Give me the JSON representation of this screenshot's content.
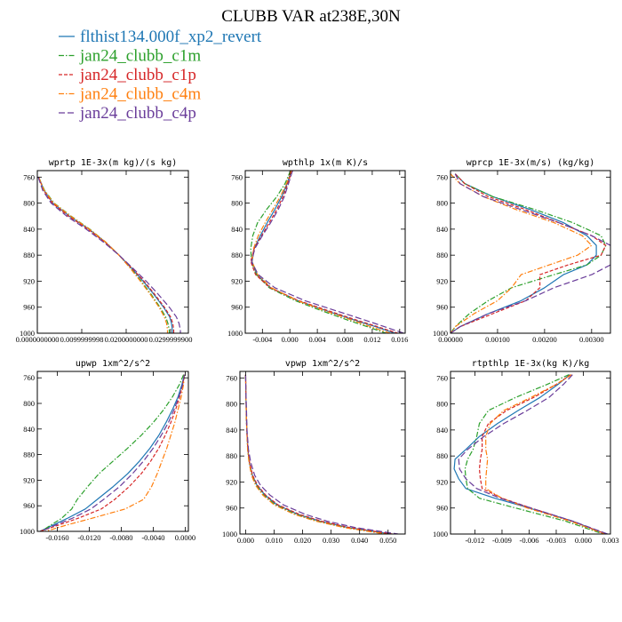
{
  "figure": {
    "title": "CLUBB VAR at238E,30N",
    "legend": [
      {
        "name": "flthist134.000f_xp2_revert",
        "color": "#1f77b4",
        "dash": "solid"
      },
      {
        "name": "jan24_clubb_c1m",
        "color": "#2ca02c",
        "dash": "dashdot"
      },
      {
        "name": "jan24_clubb_c1p",
        "color": "#d62728",
        "dash": "dash"
      },
      {
        "name": "jan24_clubb_c4m",
        "color": "#ff7f0e",
        "dash": "dashdot"
      },
      {
        "name": "jan24_clubb_c4p",
        "color": "#6a3d9a",
        "dash": "longdash"
      }
    ]
  },
  "chart_data": [
    {
      "type": "line",
      "title": "wprtp  1E-3x(m kg)/(s kg)",
      "xlim": [
        0,
        0.034
      ],
      "ylim": [
        1000,
        750
      ],
      "y_reversed": true,
      "xticks": [
        0,
        0.01,
        0.02,
        0.03
      ],
      "xtick_labels": [
        "0.0000000000",
        "0.0099999998",
        "0.0200000000",
        "0.0299999900"
      ],
      "yticks": [
        760,
        800,
        840,
        880,
        920,
        960,
        1000
      ],
      "ytick_labels": [
        "760",
        "800",
        "840",
        "880",
        "920",
        "960",
        "1000"
      ],
      "y": [
        760,
        780,
        800,
        820,
        840,
        860,
        880,
        900,
        920,
        940,
        960,
        975,
        985,
        995,
        1000
      ],
      "series": [
        {
          "name": "flthist134.000f_xp2_revert",
          "values": [
            0.0003,
            0.0015,
            0.0035,
            0.0072,
            0.0116,
            0.0153,
            0.0184,
            0.0212,
            0.0238,
            0.0262,
            0.0284,
            0.0298,
            0.0302,
            0.0304,
            0.0304
          ]
        },
        {
          "name": "jan24_clubb_c1m",
          "values": [
            0.0003,
            0.0016,
            0.0038,
            0.0076,
            0.0118,
            0.0154,
            0.0184,
            0.021,
            0.0234,
            0.0256,
            0.0276,
            0.0289,
            0.0294,
            0.0297,
            0.0297
          ]
        },
        {
          "name": "jan24_clubb_c1p",
          "values": [
            0.0003,
            0.0014,
            0.0034,
            0.007,
            0.0114,
            0.0152,
            0.0184,
            0.0213,
            0.024,
            0.0264,
            0.0286,
            0.03,
            0.0305,
            0.0307,
            0.0307
          ]
        },
        {
          "name": "jan24_clubb_c4m",
          "values": [
            0.0003,
            0.0015,
            0.0037,
            0.0075,
            0.0117,
            0.0154,
            0.0184,
            0.0209,
            0.0232,
            0.0254,
            0.0274,
            0.0286,
            0.0291,
            0.0293,
            0.0293
          ]
        },
        {
          "name": "jan24_clubb_c4p",
          "values": [
            0.0002,
            0.0012,
            0.0031,
            0.0066,
            0.011,
            0.0149,
            0.0184,
            0.0215,
            0.0245,
            0.0272,
            0.0297,
            0.0313,
            0.0319,
            0.0322,
            0.0322
          ]
        }
      ]
    },
    {
      "type": "line",
      "title": "wpthlp  1x(m K)/s",
      "xlim": [
        -0.0065,
        0.0168
      ],
      "ylim": [
        1000,
        750
      ],
      "y_reversed": true,
      "xticks": [
        -0.004,
        0.0,
        0.004,
        0.008,
        0.012,
        0.016
      ],
      "xtick_labels": [
        "-0.004",
        "0.000",
        "0.004",
        "0.008",
        "0.012",
        "0.016"
      ],
      "yticks": [
        760,
        800,
        840,
        880,
        920,
        960,
        1000
      ],
      "ytick_labels": [
        "760",
        "800",
        "840",
        "880",
        "920",
        "960",
        "1000"
      ],
      "y": [
        750,
        770,
        790,
        810,
        830,
        850,
        870,
        890,
        910,
        930,
        950,
        965,
        980,
        990,
        1000
      ],
      "series": [
        {
          "name": "flthist134.000f_xp2_revert",
          "values": [
            0.0002,
            -0.0004,
            -0.0012,
            -0.0022,
            -0.0033,
            -0.0043,
            -0.0052,
            -0.0055,
            -0.0048,
            -0.0028,
            0.0012,
            0.0052,
            0.0095,
            0.0125,
            0.0153
          ]
        },
        {
          "name": "jan24_clubb_c1m",
          "values": [
            0.0001,
            -0.0007,
            -0.0019,
            -0.0034,
            -0.0047,
            -0.0054,
            -0.0057,
            -0.0056,
            -0.0049,
            -0.003,
            0.0008,
            0.0045,
            0.0085,
            0.0113,
            0.014
          ]
        },
        {
          "name": "jan24_clubb_c1p",
          "values": [
            0.0003,
            -0.0003,
            -0.001,
            -0.0019,
            -0.003,
            -0.0041,
            -0.0052,
            -0.0057,
            -0.005,
            -0.0029,
            0.0013,
            0.0055,
            0.0098,
            0.0128,
            0.0157
          ]
        },
        {
          "name": "jan24_clubb_c4m",
          "values": [
            0.0002,
            -0.0005,
            -0.0014,
            -0.0025,
            -0.0036,
            -0.0046,
            -0.0053,
            -0.0055,
            -0.0047,
            -0.0027,
            0.0011,
            0.005,
            0.0091,
            0.0118,
            0.0146
          ]
        },
        {
          "name": "jan24_clubb_c4p",
          "values": [
            0.0004,
            -0.0002,
            -0.0008,
            -0.0017,
            -0.0028,
            -0.004,
            -0.0051,
            -0.0056,
            -0.0046,
            -0.0022,
            0.0022,
            0.0066,
            0.011,
            0.0138,
            0.0166
          ]
        }
      ]
    },
    {
      "type": "line",
      "title": "wprcp  1E-3x(m/s) (kg/kg)",
      "xlim": [
        0,
        0.0034
      ],
      "ylim": [
        1000,
        750
      ],
      "y_reversed": true,
      "xticks": [
        0,
        0.001,
        0.002,
        0.003
      ],
      "xtick_labels": [
        "0.00000",
        "0.00100",
        "0.00200",
        "0.00300"
      ],
      "yticks": [
        760,
        800,
        840,
        880,
        920,
        960,
        1000
      ],
      "ytick_labels": [
        "760",
        "800",
        "840",
        "880",
        "920",
        "960",
        "1000"
      ],
      "y": [
        755,
        770,
        790,
        810,
        830,
        850,
        865,
        880,
        895,
        910,
        930,
        950,
        970,
        990,
        1000
      ],
      "series": [
        {
          "name": "flthist134.000f_xp2_revert",
          "values": [
            0.0001,
            0.0003,
            0.0009,
            0.0017,
            0.0024,
            0.0029,
            0.0031,
            0.0031,
            0.0029,
            0.0024,
            0.002,
            0.0015,
            0.0008,
            0.0002,
            0.0
          ]
        },
        {
          "name": "jan24_clubb_c1m",
          "values": [
            0.0001,
            0.0003,
            0.0009,
            0.0018,
            0.0026,
            0.0032,
            0.0033,
            0.0032,
            0.0029,
            0.0022,
            0.0013,
            0.0008,
            0.0004,
            0.0001,
            0.0
          ]
        },
        {
          "name": "jan24_clubb_c1p",
          "values": [
            0.0001,
            0.0003,
            0.0008,
            0.0016,
            0.0023,
            0.003,
            0.0033,
            0.0032,
            0.0025,
            0.0019,
            0.0019,
            0.0016,
            0.0009,
            0.0002,
            0.0
          ]
        },
        {
          "name": "jan24_clubb_c4m",
          "values": [
            0.0,
            0.0002,
            0.0007,
            0.0014,
            0.0022,
            0.0028,
            0.003,
            0.0027,
            0.0021,
            0.0015,
            0.0013,
            0.001,
            0.0005,
            0.0001,
            0.0
          ]
        },
        {
          "name": "jan24_clubb_c4p",
          "values": [
            0.0001,
            0.0002,
            0.0007,
            0.0015,
            0.0023,
            0.003,
            0.0034,
            0.0035,
            0.0034,
            0.003,
            0.0022,
            0.0016,
            0.0008,
            0.0002,
            0.0
          ]
        }
      ]
    },
    {
      "type": "line",
      "title": "upwp  1xm^2/s^2",
      "xlim": [
        -0.0185,
        0.0004
      ],
      "ylim": [
        1000,
        750
      ],
      "y_reversed": true,
      "xticks": [
        -0.016,
        -0.012,
        -0.008,
        -0.004,
        0.0
      ],
      "xtick_labels": [
        "-0.0160",
        "-0.0120",
        "-0.0080",
        "-0.0040",
        "0.0000"
      ],
      "yticks": [
        760,
        800,
        840,
        880,
        920,
        960,
        1000
      ],
      "ytick_labels": [
        "760",
        "800",
        "840",
        "880",
        "920",
        "960",
        "1000"
      ],
      "y": [
        755,
        770,
        790,
        810,
        830,
        850,
        870,
        890,
        910,
        930,
        950,
        965,
        980,
        990,
        1000
      ],
      "series": [
        {
          "name": "flthist134.000f_xp2_revert",
          "values": [
            -0.0001,
            -0.0004,
            -0.0009,
            -0.0016,
            -0.0024,
            -0.0033,
            -0.0044,
            -0.0057,
            -0.0072,
            -0.009,
            -0.011,
            -0.0125,
            -0.0148,
            -0.0165,
            -0.0182
          ]
        },
        {
          "name": "jan24_clubb_c1m",
          "values": [
            -0.0002,
            -0.0007,
            -0.0016,
            -0.0027,
            -0.004,
            -0.0055,
            -0.0072,
            -0.009,
            -0.0108,
            -0.0122,
            -0.0135,
            -0.0142,
            -0.0155,
            -0.0168,
            -0.018
          ]
        },
        {
          "name": "jan24_clubb_c1p",
          "values": [
            -0.0001,
            -0.0003,
            -0.0007,
            -0.0012,
            -0.0018,
            -0.0025,
            -0.0033,
            -0.0043,
            -0.0055,
            -0.007,
            -0.0088,
            -0.0105,
            -0.0135,
            -0.0158,
            -0.0182
          ]
        },
        {
          "name": "jan24_clubb_c4m",
          "values": [
            -0.0001,
            -0.0002,
            -0.0005,
            -0.0009,
            -0.0013,
            -0.0018,
            -0.0023,
            -0.0029,
            -0.0035,
            -0.0042,
            -0.0052,
            -0.0075,
            -0.0118,
            -0.0148,
            -0.0175
          ]
        },
        {
          "name": "jan24_clubb_c4p",
          "values": [
            -0.0001,
            -0.0003,
            -0.0008,
            -0.0014,
            -0.0021,
            -0.003,
            -0.004,
            -0.0052,
            -0.0066,
            -0.0082,
            -0.0102,
            -0.0118,
            -0.0142,
            -0.0162,
            -0.018
          ]
        }
      ]
    },
    {
      "type": "line",
      "title": "vpwp  1xm^2/s^2",
      "xlim": [
        -0.002,
        0.056
      ],
      "ylim": [
        1000,
        750
      ],
      "y_reversed": true,
      "xticks": [
        0.0,
        0.01,
        0.02,
        0.03,
        0.04,
        0.05
      ],
      "xtick_labels": [
        "0.000",
        "0.010",
        "0.020",
        "0.030",
        "0.040",
        "0.050"
      ],
      "yticks": [
        760,
        800,
        840,
        880,
        920,
        960,
        1000
      ],
      "ytick_labels": [
        "760",
        "800",
        "840",
        "880",
        "920",
        "960",
        "1000"
      ],
      "y": [
        755,
        780,
        810,
        840,
        870,
        890,
        910,
        925,
        940,
        955,
        970,
        980,
        990,
        1000
      ],
      "series": [
        {
          "name": "flthist134.000f_xp2_revert",
          "values": [
            0.0,
            0.0001,
            0.0002,
            0.0004,
            0.0008,
            0.0013,
            0.0024,
            0.004,
            0.0068,
            0.011,
            0.0185,
            0.026,
            0.036,
            0.051
          ]
        },
        {
          "name": "jan24_clubb_c1m",
          "values": [
            0.0,
            0.0001,
            0.0002,
            0.0004,
            0.0007,
            0.0012,
            0.0022,
            0.0037,
            0.0063,
            0.0104,
            0.0178,
            0.025,
            0.035,
            0.05
          ]
        },
        {
          "name": "jan24_clubb_c1p",
          "values": [
            0.0,
            0.0001,
            0.0002,
            0.0004,
            0.0008,
            0.0014,
            0.0025,
            0.0042,
            0.007,
            0.0113,
            0.019,
            0.0265,
            0.0365,
            0.0515
          ]
        },
        {
          "name": "jan24_clubb_c4m",
          "values": [
            0.0,
            0.0001,
            0.0002,
            0.0004,
            0.0007,
            0.0012,
            0.0021,
            0.0035,
            0.006,
            0.01,
            0.0172,
            0.0245,
            0.0345,
            0.049
          ]
        },
        {
          "name": "jan24_clubb_c4p",
          "values": [
            0.0,
            0.0001,
            0.0003,
            0.0005,
            0.001,
            0.0018,
            0.0032,
            0.0052,
            0.0085,
            0.0132,
            0.021,
            0.0285,
            0.0385,
            0.0535
          ]
        }
      ]
    },
    {
      "type": "line",
      "title": "rtpthlp  1E-3x(kg K)/kg",
      "xlim": [
        -0.0147,
        0.003
      ],
      "ylim": [
        1000,
        750
      ],
      "y_reversed": true,
      "xticks": [
        -0.012,
        -0.009,
        -0.006,
        -0.003,
        0.0,
        0.003
      ],
      "xtick_labels": [
        "-0.012",
        "-0.009",
        "-0.006",
        "-0.003",
        "0.000",
        "0.003"
      ],
      "yticks": [
        760,
        800,
        840,
        880,
        920,
        960,
        1000
      ],
      "ytick_labels": [
        "760",
        "800",
        "840",
        "880",
        "920",
        "960",
        "1000"
      ],
      "y": [
        755,
        770,
        790,
        810,
        830,
        850,
        870,
        885,
        900,
        915,
        930,
        945,
        960,
        980,
        1000
      ],
      "series": [
        {
          "name": "flthist134.000f_xp2_revert",
          "values": [
            -0.0015,
            -0.0028,
            -0.0048,
            -0.0072,
            -0.0095,
            -0.0115,
            -0.013,
            -0.0142,
            -0.0143,
            -0.0138,
            -0.013,
            -0.0098,
            -0.006,
            -0.0012,
            0.0025
          ]
        },
        {
          "name": "jan24_clubb_c1m",
          "values": [
            -0.0016,
            -0.004,
            -0.0075,
            -0.0105,
            -0.0115,
            -0.0118,
            -0.0122,
            -0.0128,
            -0.0131,
            -0.013,
            -0.0128,
            -0.0115,
            -0.0075,
            -0.002,
            0.0022
          ]
        },
        {
          "name": "jan24_clubb_c1p",
          "values": [
            -0.0014,
            -0.003,
            -0.0055,
            -0.0085,
            -0.0105,
            -0.0112,
            -0.0112,
            -0.0114,
            -0.0115,
            -0.0114,
            -0.0112,
            -0.009,
            -0.0058,
            -0.0013,
            0.0025
          ]
        },
        {
          "name": "jan24_clubb_c4m",
          "values": [
            -0.0013,
            -0.003,
            -0.0058,
            -0.0088,
            -0.0103,
            -0.0108,
            -0.0108,
            -0.0106,
            -0.0107,
            -0.0108,
            -0.0108,
            -0.009,
            -0.0062,
            -0.0015,
            0.0024
          ]
        },
        {
          "name": "jan24_clubb_c4p",
          "values": [
            -0.0012,
            -0.0022,
            -0.0038,
            -0.0062,
            -0.0088,
            -0.011,
            -0.0128,
            -0.0138,
            -0.0137,
            -0.013,
            -0.0118,
            -0.0092,
            -0.0058,
            -0.0012,
            0.0027
          ]
        }
      ]
    }
  ]
}
